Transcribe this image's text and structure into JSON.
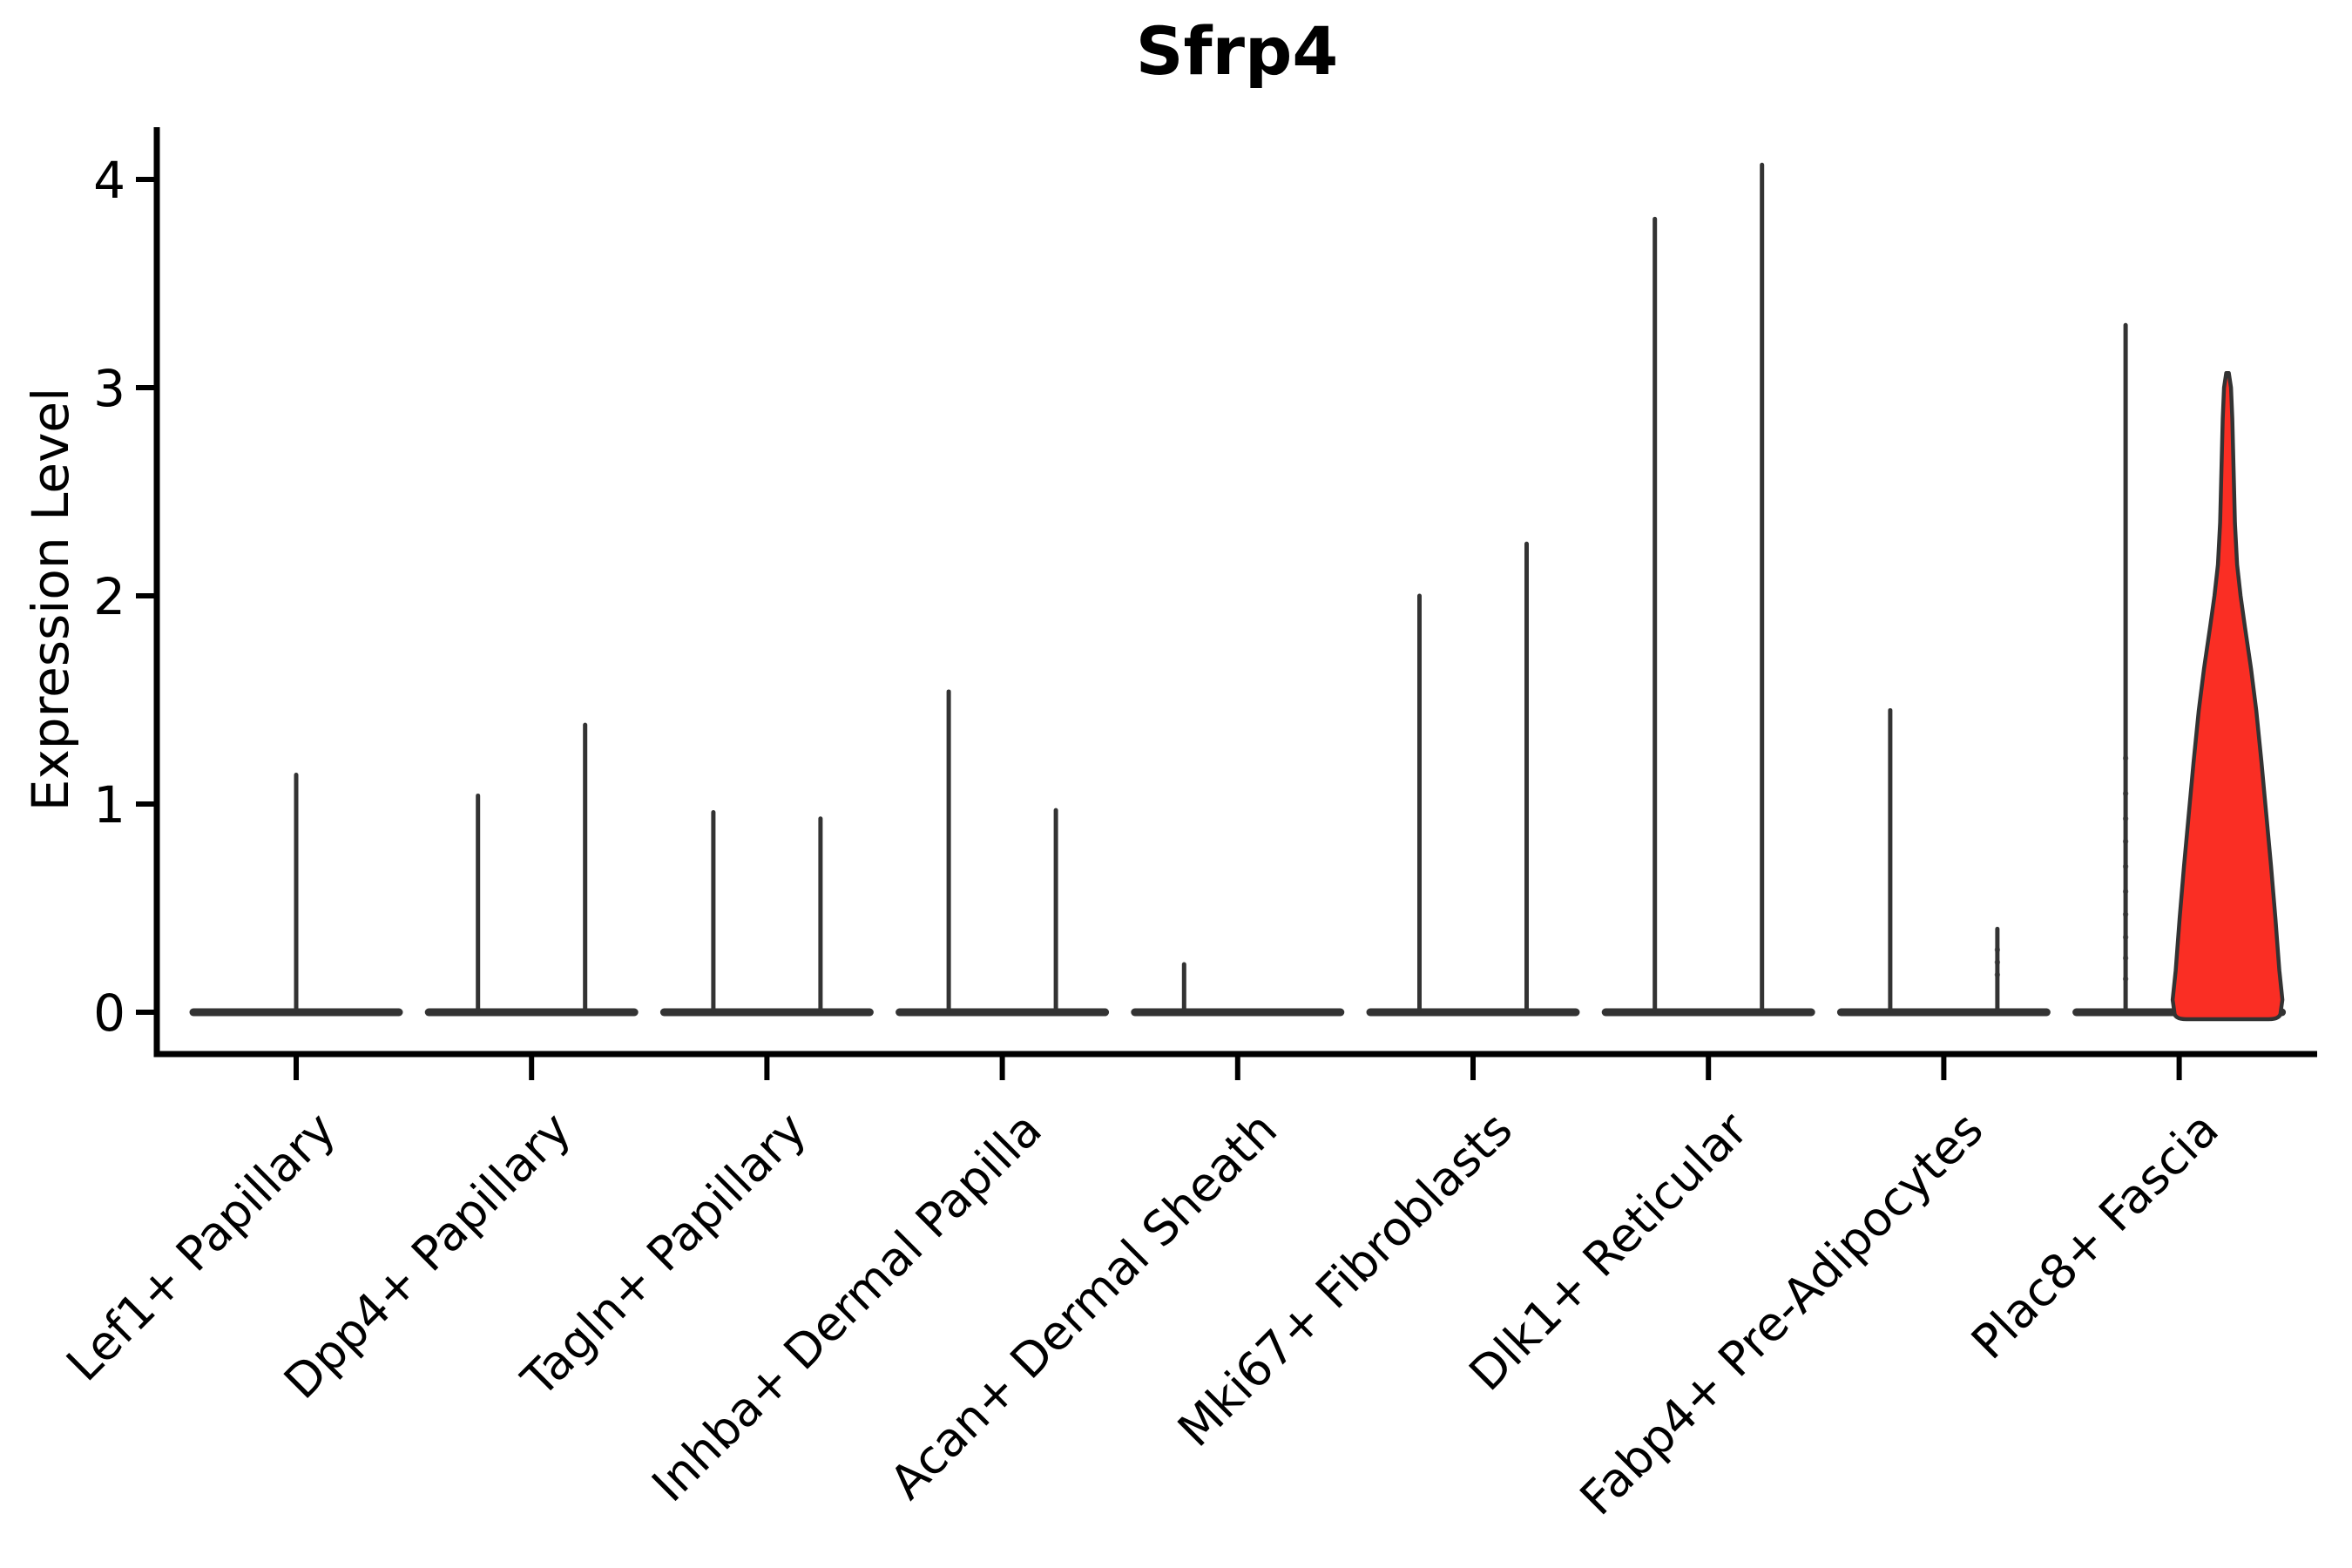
{
  "chart_data": {
    "type": "violin",
    "title": "Sfrp4",
    "ylabel": "Expression Level",
    "xlabel": "",
    "ylim": [
      0,
      4.35
    ],
    "yticks": [
      0,
      1,
      2,
      3,
      4
    ],
    "grid": false,
    "legend": null,
    "categories": [
      "Lef1+ Papillary",
      "Dpp4+ Papillary",
      "Tagln+ Papillary",
      "Inhba+ Dermal Papilla",
      "Acan+ Dermal Sheath",
      "Mki67+ Fibroblasts",
      "Dlk1+ Reticular",
      "Fabp4+ Pre-Adipocytes",
      "Plac8+ Fascia"
    ],
    "violins_by_category": [
      [
        {
          "pos": "center",
          "max": 1.14,
          "fill": "none"
        }
      ],
      [
        {
          "pos": "left",
          "max": 1.04,
          "fill": "none"
        },
        {
          "pos": "right",
          "max": 1.38,
          "fill": "none"
        }
      ],
      [
        {
          "pos": "left",
          "max": 0.96,
          "fill": "none"
        },
        {
          "pos": "right",
          "max": 0.93,
          "fill": "none"
        }
      ],
      [
        {
          "pos": "left",
          "max": 1.54,
          "fill": "none"
        },
        {
          "pos": "right",
          "max": 0.97,
          "fill": "none"
        }
      ],
      [
        {
          "pos": "left",
          "max": 0.23,
          "fill": "none"
        },
        {
          "pos": "right",
          "max": 0.0,
          "fill": "none"
        }
      ],
      [
        {
          "pos": "left",
          "max": 2.0,
          "fill": "none"
        },
        {
          "pos": "right",
          "max": 2.25,
          "fill": "none"
        }
      ],
      [
        {
          "pos": "left",
          "max": 3.81,
          "fill": "none"
        },
        {
          "pos": "right",
          "max": 4.07,
          "fill": "none"
        }
      ],
      [
        {
          "pos": "left",
          "max": 1.45,
          "fill": "none"
        },
        {
          "pos": "right",
          "max": 0.4,
          "fill": "none",
          "dots": [
            0.3,
            0.24,
            0.18
          ]
        }
      ],
      [
        {
          "pos": "left",
          "max": 3.3,
          "fill": "none",
          "dots": [
            1.22,
            1.05,
            0.93,
            0.82,
            0.7,
            0.58,
            0.47,
            0.36,
            0.26,
            0.16
          ]
        },
        {
          "pos": "right",
          "max": 3.07,
          "fill": "highlight",
          "profile": [
            [
              0.0,
              61
            ],
            [
              0.06,
              63
            ],
            [
              0.2,
              59.5
            ],
            [
              0.45,
              55
            ],
            [
              0.7,
              50
            ],
            [
              0.95,
              44.5
            ],
            [
              1.2,
              39
            ],
            [
              1.45,
              33
            ],
            [
              1.65,
              27
            ],
            [
              1.85,
              20
            ],
            [
              2.0,
              15
            ],
            [
              2.15,
              11
            ],
            [
              2.35,
              8.5
            ],
            [
              2.6,
              7
            ],
            [
              2.85,
              5.5
            ],
            [
              3.0,
              4
            ],
            [
              3.07,
              1.5
            ]
          ]
        }
      ]
    ],
    "colors": {
      "violin_stroke": "#333333",
      "highlight_fill": "#fa2e24",
      "axis": "#000000",
      "background": "#ffffff"
    }
  }
}
